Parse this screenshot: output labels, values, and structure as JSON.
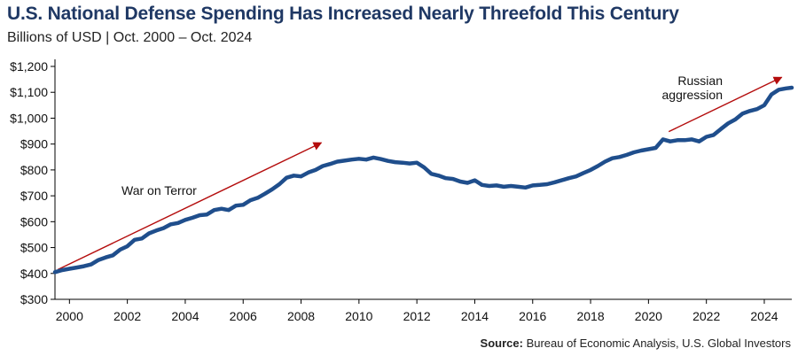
{
  "header": {
    "title": "U.S. National Defense Spending Has Increased Nearly Threefold This Century",
    "subtitle": "Billions of USD | Oct. 2000 – Oct. 2024"
  },
  "footer": {
    "source_label": "Source:",
    "source_text": "Bureau of Economic Analysis, U.S. Global Investors"
  },
  "colors": {
    "line": "#1f4e8c",
    "arrow": "#b40d0d",
    "title": "#1f3864",
    "axis": "#000000"
  },
  "chart_data": {
    "type": "line",
    "title": "U.S. National Defense Spending Has Increased Nearly Threefold This Century",
    "subtitle": "Billions of USD | Oct. 2000 – Oct. 2024",
    "xlabel": "",
    "ylabel": "",
    "xlim": [
      1999.5,
      2024.95
    ],
    "ylim": [
      300,
      1200
    ],
    "grid": false,
    "y_ticks": [
      300,
      400,
      500,
      600,
      700,
      800,
      900,
      1000,
      1100,
      1200
    ],
    "y_tick_labels": [
      "$300",
      "$400",
      "$500",
      "$600",
      "$700",
      "$800",
      "$900",
      "$1,000",
      "$1,100",
      "$1,200"
    ],
    "x_ticks": [
      2000,
      2002,
      2004,
      2006,
      2008,
      2010,
      2012,
      2014,
      2016,
      2018,
      2020,
      2022,
      2024
    ],
    "x_tick_labels": [
      "2000",
      "2002",
      "2004",
      "2006",
      "2008",
      "2010",
      "2012",
      "2014",
      "2016",
      "2018",
      "2020",
      "2022",
      "2024"
    ],
    "series": [
      {
        "name": "National Defense Spending",
        "x": [
          1999.5,
          1999.75,
          2000.0,
          2000.25,
          2000.5,
          2000.75,
          2001.0,
          2001.25,
          2001.5,
          2001.75,
          2002.0,
          2002.25,
          2002.5,
          2002.75,
          2003.0,
          2003.25,
          2003.5,
          2003.75,
          2004.0,
          2004.25,
          2004.5,
          2004.75,
          2005.0,
          2005.25,
          2005.5,
          2005.75,
          2006.0,
          2006.25,
          2006.5,
          2006.75,
          2007.0,
          2007.25,
          2007.5,
          2007.75,
          2008.0,
          2008.25,
          2008.5,
          2008.75,
          2009.0,
          2009.25,
          2009.5,
          2009.75,
          2010.0,
          2010.25,
          2010.5,
          2010.75,
          2011.0,
          2011.25,
          2011.5,
          2011.75,
          2012.0,
          2012.25,
          2012.5,
          2012.75,
          2013.0,
          2013.25,
          2013.5,
          2013.75,
          2014.0,
          2014.25,
          2014.5,
          2014.75,
          2015.0,
          2015.25,
          2015.5,
          2015.75,
          2016.0,
          2016.25,
          2016.5,
          2016.75,
          2017.0,
          2017.25,
          2017.5,
          2017.75,
          2018.0,
          2018.25,
          2018.5,
          2018.75,
          2019.0,
          2019.25,
          2019.5,
          2019.75,
          2020.0,
          2020.25,
          2020.5,
          2020.75,
          2021.0,
          2021.25,
          2021.5,
          2021.75,
          2022.0,
          2022.25,
          2022.5,
          2022.75,
          2023.0,
          2023.25,
          2023.5,
          2023.75,
          2024.0,
          2024.25,
          2024.5,
          2024.75,
          2024.95
        ],
        "values": [
          405,
          413,
          418,
          423,
          428,
          435,
          452,
          462,
          470,
          492,
          505,
          530,
          535,
          555,
          566,
          575,
          590,
          595,
          607,
          615,
          625,
          628,
          645,
          650,
          645,
          662,
          665,
          683,
          692,
          708,
          725,
          745,
          770,
          778,
          775,
          790,
          800,
          815,
          823,
          832,
          836,
          840,
          843,
          840,
          848,
          842,
          835,
          830,
          828,
          825,
          828,
          810,
          785,
          778,
          768,
          765,
          755,
          750,
          760,
          742,
          738,
          740,
          735,
          738,
          735,
          732,
          740,
          742,
          745,
          752,
          760,
          768,
          775,
          788,
          800,
          815,
          832,
          845,
          850,
          858,
          868,
          875,
          880,
          885,
          918,
          910,
          915,
          915,
          918,
          910,
          928,
          935,
          958,
          980,
          995,
          1018,
          1028,
          1035,
          1050,
          1092,
          1110,
          1115,
          1118
        ]
      }
    ],
    "annotations": [
      {
        "text": "War on Terror",
        "arrow_from": [
          1999.6,
          415
        ],
        "arrow_to": [
          2008.7,
          905
        ]
      },
      {
        "lines": [
          "Russian",
          "aggression"
        ],
        "arrow_from": [
          2020.7,
          948
        ],
        "arrow_to": [
          2024.6,
          1158
        ]
      }
    ]
  }
}
